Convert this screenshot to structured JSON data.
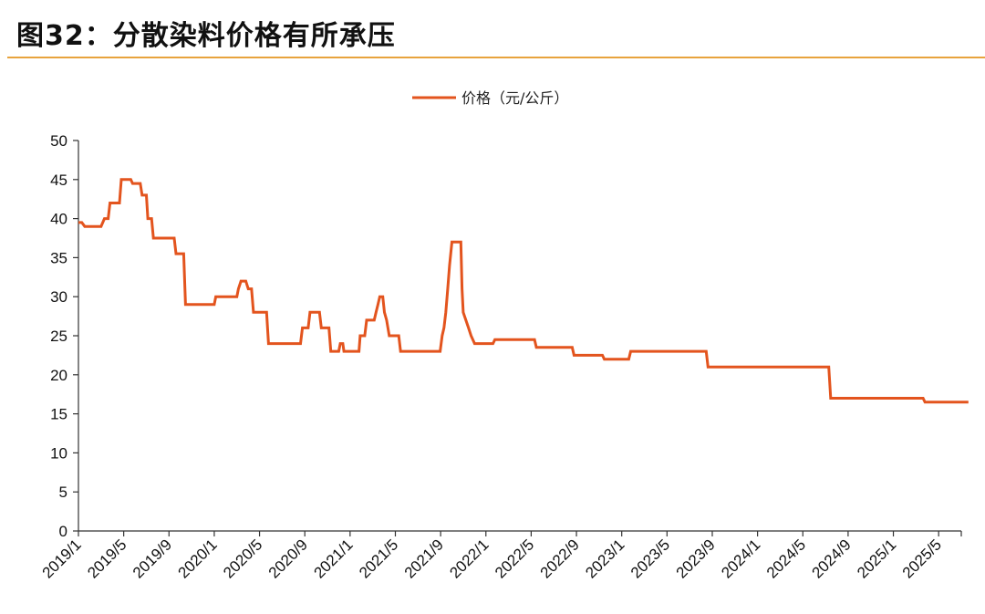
{
  "page": {
    "title": "图32：分散染料价格有所承压"
  },
  "colors": {
    "accent_rule": "#E8A33D",
    "series_line": "#E3541E",
    "axis": "#333333"
  },
  "chart_data": {
    "type": "line",
    "title": "",
    "xlabel": "",
    "ylabel": "",
    "legend_position": "top-center",
    "grid": false,
    "ylim": [
      0,
      50
    ],
    "y_ticks": [
      0,
      5,
      10,
      15,
      20,
      25,
      30,
      35,
      40,
      45,
      50
    ],
    "x_range": [
      "2019-01",
      "2025-07"
    ],
    "x_ticks": [
      "2019/1",
      "2019/5",
      "2019/9",
      "2020/1",
      "2020/5",
      "2020/9",
      "2021/1",
      "2021/5",
      "2021/9",
      "2022/1",
      "2022/5",
      "2022/9",
      "2023/1",
      "2023/5",
      "2023/9",
      "2024/1",
      "2024/5",
      "2024/9",
      "2025/1",
      "2025/5"
    ],
    "series": [
      {
        "name": "价格（元/公斤）",
        "step": true,
        "points": [
          [
            "2019-01",
            39.5
          ],
          [
            "2019-01-10",
            39.5
          ],
          [
            "2019-01-18",
            39
          ],
          [
            "2019-03-01",
            39
          ],
          [
            "2019-03-10",
            40
          ],
          [
            "2019-03-20",
            40
          ],
          [
            "2019-03-25",
            42
          ],
          [
            "2019-04-20",
            42
          ],
          [
            "2019-04-25",
            45
          ],
          [
            "2019-05-20",
            45
          ],
          [
            "2019-05-25",
            44.5
          ],
          [
            "2019-06-15",
            44.5
          ],
          [
            "2019-06-20",
            43
          ],
          [
            "2019-07-01",
            43
          ],
          [
            "2019-07-05",
            40
          ],
          [
            "2019-07-15",
            40
          ],
          [
            "2019-07-20",
            37.5
          ],
          [
            "2019-09-15",
            37.5
          ],
          [
            "2019-09-20",
            35.5
          ],
          [
            "2019-10-10",
            35.5
          ],
          [
            "2019-10-15",
            29
          ],
          [
            "2020-01-01",
            29
          ],
          [
            "2020-01-05",
            30
          ],
          [
            "2020-03-01",
            30
          ],
          [
            "2020-03-05",
            31
          ],
          [
            "2020-03-12",
            32
          ],
          [
            "2020-03-25",
            32
          ],
          [
            "2020-04-01",
            31
          ],
          [
            "2020-04-10",
            31
          ],
          [
            "2020-04-15",
            28
          ],
          [
            "2020-05-20",
            28
          ],
          [
            "2020-05-25",
            24
          ],
          [
            "2020-08-20",
            24
          ],
          [
            "2020-08-25",
            26
          ],
          [
            "2020-09-10",
            26
          ],
          [
            "2020-09-15",
            28
          ],
          [
            "2020-10-10",
            28
          ],
          [
            "2020-10-15",
            26
          ],
          [
            "2020-11-05",
            26
          ],
          [
            "2020-11-10",
            23
          ],
          [
            "2020-12-01",
            23
          ],
          [
            "2020-12-05",
            24
          ],
          [
            "2020-12-12",
            24
          ],
          [
            "2020-12-15",
            23
          ],
          [
            "2021-01-25",
            23
          ],
          [
            "2021-01-28",
            25
          ],
          [
            "2021-02-10",
            25
          ],
          [
            "2021-02-15",
            27
          ],
          [
            "2021-03-05",
            27
          ],
          [
            "2021-03-10",
            28
          ],
          [
            "2021-03-15",
            29
          ],
          [
            "2021-03-20",
            30
          ],
          [
            "2021-03-28",
            30
          ],
          [
            "2021-04-02",
            28
          ],
          [
            "2021-04-08",
            27
          ],
          [
            "2021-04-15",
            25
          ],
          [
            "2021-05-10",
            25
          ],
          [
            "2021-05-15",
            23
          ],
          [
            "2021-08-30",
            23
          ],
          [
            "2021-09-05",
            25
          ],
          [
            "2021-09-10",
            26
          ],
          [
            "2021-09-15",
            28
          ],
          [
            "2021-09-20",
            31
          ],
          [
            "2021-09-25",
            34
          ],
          [
            "2021-10-01",
            37
          ],
          [
            "2021-10-25",
            37
          ],
          [
            "2021-10-28",
            31
          ],
          [
            "2021-11-01",
            28
          ],
          [
            "2021-11-08",
            27
          ],
          [
            "2021-11-15",
            26
          ],
          [
            "2021-11-22",
            25
          ],
          [
            "2021-12-01",
            24
          ],
          [
            "2022-01-20",
            24
          ],
          [
            "2022-01-25",
            24.5
          ],
          [
            "2022-05-10",
            24.5
          ],
          [
            "2022-05-15",
            23.5
          ],
          [
            "2022-08-20",
            23.5
          ],
          [
            "2022-08-25",
            22.5
          ],
          [
            "2022-11-10",
            22.5
          ],
          [
            "2022-11-15",
            22
          ],
          [
            "2023-01-20",
            22
          ],
          [
            "2023-01-25",
            23
          ],
          [
            "2023-08-15",
            23
          ],
          [
            "2023-08-20",
            21
          ],
          [
            "2024-07-10",
            21
          ],
          [
            "2024-07-15",
            17
          ],
          [
            "2025-03-20",
            17
          ],
          [
            "2025-03-25",
            16.5
          ],
          [
            "2025-07-20",
            16.5
          ]
        ]
      }
    ]
  }
}
